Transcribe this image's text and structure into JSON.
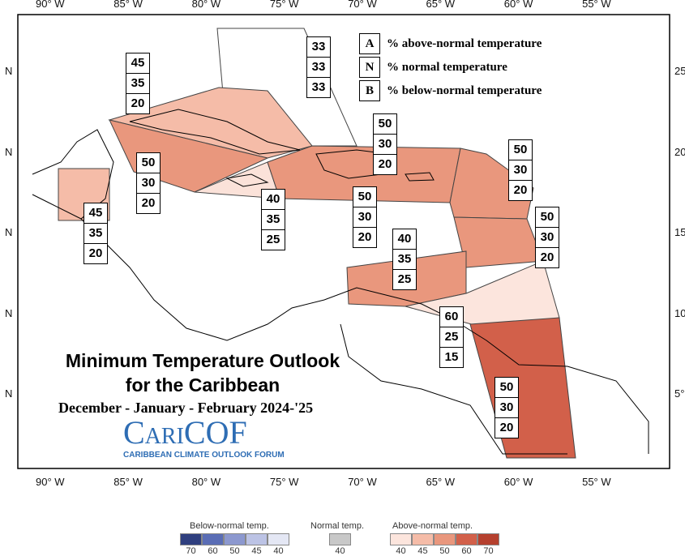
{
  "title": [
    "Minimum Temperature Outlook",
    "for the Caribbean"
  ],
  "period": "December - January - February 2024-'25",
  "logo": {
    "name": "CariCOF",
    "subtitle": "CARIBBEAN CLIMATE OUTLOOK FORUM"
  },
  "key": [
    {
      "letter": "A",
      "text": "% above-normal temperature"
    },
    {
      "letter": "N",
      "text": "% normal temperature"
    },
    {
      "letter": "B",
      "text": "% below-normal temperature"
    }
  ],
  "lon_labels": [
    "90° W",
    "85° W",
    "80° W",
    "75° W",
    "70° W",
    "65° W",
    "60° W",
    "55° W"
  ],
  "lat_labels_left": [
    "N",
    "N",
    "N",
    "N",
    "N"
  ],
  "lat_labels_right": [
    "25",
    "20",
    "15",
    "10",
    "5°"
  ],
  "regions": [
    {
      "above": 33,
      "normal": 33,
      "below": 33,
      "color": "#ffffff"
    },
    {
      "above": 45,
      "normal": 35,
      "below": 20,
      "color": "#f5bca8"
    },
    {
      "above": 50,
      "normal": 30,
      "below": 20,
      "color": "#e9977d"
    },
    {
      "above": 40,
      "normal": 35,
      "below": 25,
      "color": "#fbe2d9"
    },
    {
      "above": 45,
      "normal": 35,
      "below": 20,
      "color": "#f5bca8"
    },
    {
      "above": 50,
      "normal": 30,
      "below": 20,
      "color": "#e9977d"
    },
    {
      "above": 50,
      "normal": 30,
      "below": 20,
      "color": "#e9977d"
    },
    {
      "above": 50,
      "normal": 30,
      "below": 20,
      "color": "#e9977d"
    },
    {
      "above": 50,
      "normal": 30,
      "below": 20,
      "color": "#e9977d"
    },
    {
      "above": 40,
      "normal": 35,
      "below": 25,
      "color": "#fce5dd"
    },
    {
      "above": 60,
      "normal": 25,
      "below": 15,
      "color": "#d2604a"
    },
    {
      "above": 50,
      "normal": 30,
      "below": 20,
      "color": "#e58d73"
    }
  ],
  "scale": {
    "below": {
      "label": "Below-normal temp.",
      "ticks": [
        70,
        60,
        50,
        45,
        40
      ],
      "colors": [
        "#2f3f7f",
        "#5a6db5",
        "#8c98cf",
        "#bcc3e5",
        "#e4e7f4"
      ]
    },
    "normal": {
      "label": "Normal temp.",
      "ticks": [
        40
      ],
      "colors": [
        "#c8c8c8"
      ]
    },
    "above": {
      "label": "Above-normal temp.",
      "ticks": [
        40,
        45,
        50,
        60,
        70
      ],
      "colors": [
        "#fce5dd",
        "#f5bca8",
        "#e9977d",
        "#d2604a",
        "#b5402e"
      ]
    }
  }
}
